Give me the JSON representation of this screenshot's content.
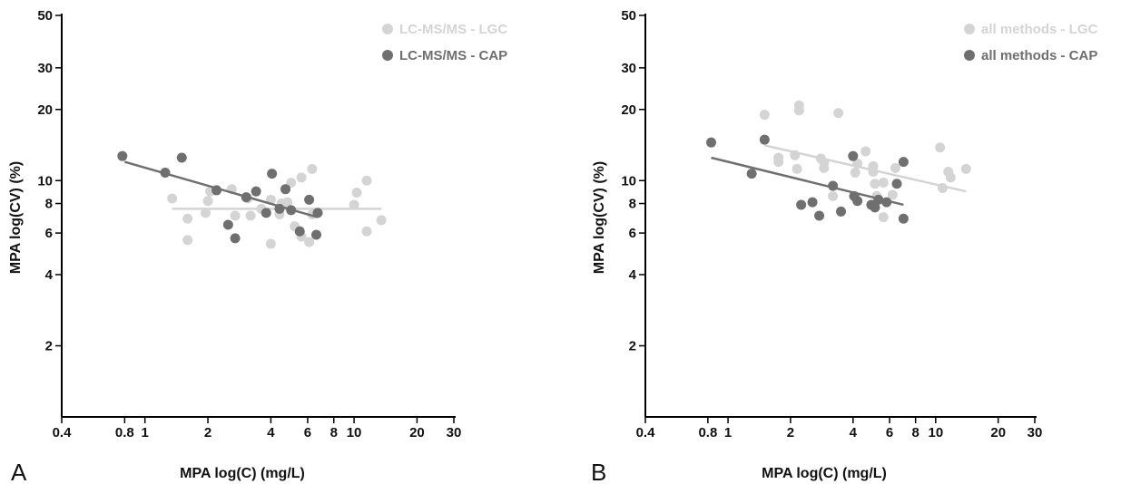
{
  "colors": {
    "lgc": "#d4d4d4",
    "cap": "#6f6f6f"
  },
  "chart_data": [
    {
      "panel_label": "A",
      "type": "scatter",
      "xlabel": "MPA log(C) (mg/L)",
      "ylabel": "MPA log(CV) (%)",
      "x_scale": "log",
      "y_scale": "log",
      "xlim": [
        0.4,
        30
      ],
      "ylim": [
        1,
        50
      ],
      "x_ticks": [
        0.4,
        0.8,
        1,
        2,
        4,
        6,
        8,
        10,
        20,
        30
      ],
      "x_tick_labels": [
        "0.4",
        "0.8",
        "1",
        "2",
        "4",
        "6",
        "8",
        "10",
        "20",
        "30"
      ],
      "y_ticks": [
        2,
        4,
        6,
        8,
        10,
        20,
        30,
        50
      ],
      "y_tick_labels": [
        "2",
        "4",
        "6",
        "8",
        "10",
        "20",
        "30",
        "50"
      ],
      "legend_position": "top-right",
      "series": [
        {
          "name": "LC-MS/MS - LGC",
          "color": "#d4d4d4",
          "points": [
            [
              1.35,
              8.4
            ],
            [
              1.6,
              6.9
            ],
            [
              1.6,
              5.6
            ],
            [
              1.95,
              7.3
            ],
            [
              2.0,
              8.2
            ],
            [
              2.05,
              9.0
            ],
            [
              2.6,
              9.2
            ],
            [
              2.7,
              7.1
            ],
            [
              3.1,
              8.4
            ],
            [
              3.2,
              7.1
            ],
            [
              3.6,
              7.6
            ],
            [
              4.0,
              8.3
            ],
            [
              4.0,
              5.4
            ],
            [
              4.4,
              7.2
            ],
            [
              4.5,
              8.0
            ],
            [
              4.8,
              8.1
            ],
            [
              5.0,
              9.8
            ],
            [
              5.2,
              6.4
            ],
            [
              5.6,
              10.3
            ],
            [
              5.6,
              5.8
            ],
            [
              6.1,
              5.5
            ],
            [
              6.3,
              11.2
            ],
            [
              6.3,
              7.2
            ],
            [
              10.0,
              7.9
            ],
            [
              10.3,
              8.9
            ],
            [
              11.5,
              10.0
            ],
            [
              11.5,
              6.1
            ],
            [
              13.5,
              6.8
            ]
          ],
          "fit_line": {
            "x": [
              1.35,
              13.5
            ],
            "y": [
              7.6,
              7.6
            ]
          }
        },
        {
          "name": "LC-MS/MS - CAP",
          "color": "#6f6f6f",
          "points": [
            [
              0.78,
              12.7
            ],
            [
              1.25,
              10.8
            ],
            [
              1.5,
              12.5
            ],
            [
              2.2,
              9.1
            ],
            [
              2.5,
              6.5
            ],
            [
              2.7,
              5.7
            ],
            [
              3.05,
              8.5
            ],
            [
              3.4,
              9.0
            ],
            [
              3.8,
              7.3
            ],
            [
              4.05,
              10.7
            ],
            [
              4.4,
              7.6
            ],
            [
              4.7,
              9.2
            ],
            [
              5.0,
              7.5
            ],
            [
              5.5,
              6.1
            ],
            [
              6.1,
              8.3
            ],
            [
              6.6,
              5.9
            ],
            [
              6.7,
              7.3
            ]
          ],
          "fit_line": {
            "x": [
              0.8,
              6.7
            ],
            "y": [
              12.0,
              7.0
            ]
          }
        }
      ]
    },
    {
      "panel_label": "B",
      "type": "scatter",
      "xlabel": "MPA log(C) (mg/L)",
      "ylabel": "MPA log(CV) (%)",
      "x_scale": "log",
      "y_scale": "log",
      "xlim": [
        0.4,
        30
      ],
      "ylim": [
        1,
        50
      ],
      "x_ticks": [
        0.4,
        0.8,
        1,
        2,
        4,
        6,
        8,
        10,
        20,
        30
      ],
      "x_tick_labels": [
        "0.4",
        "0.8",
        "1",
        "2",
        "4",
        "6",
        "8",
        "10",
        "20",
        "30"
      ],
      "y_ticks": [
        2,
        4,
        6,
        8,
        10,
        20,
        30,
        50
      ],
      "y_tick_labels": [
        "2",
        "4",
        "6",
        "8",
        "10",
        "20",
        "30",
        "50"
      ],
      "legend_position": "top-right",
      "series": [
        {
          "name": "all methods - LGC",
          "color": "#d4d4d4",
          "points": [
            [
              1.5,
              19.0
            ],
            [
              1.75,
              12.5
            ],
            [
              1.75,
              12.0
            ],
            [
              2.1,
              12.8
            ],
            [
              2.15,
              11.2
            ],
            [
              2.2,
              20.8
            ],
            [
              2.2,
              19.8
            ],
            [
              2.8,
              12.4
            ],
            [
              2.9,
              11.9
            ],
            [
              2.9,
              11.3
            ],
            [
              3.2,
              8.6
            ],
            [
              3.4,
              19.3
            ],
            [
              4.1,
              10.8
            ],
            [
              4.2,
              11.8
            ],
            [
              4.6,
              13.3
            ],
            [
              5.0,
              11.5
            ],
            [
              5.0,
              10.9
            ],
            [
              5.1,
              9.7
            ],
            [
              5.2,
              8.6
            ],
            [
              5.6,
              9.8
            ],
            [
              5.6,
              7.0
            ],
            [
              6.2,
              8.7
            ],
            [
              6.4,
              11.3
            ],
            [
              10.5,
              13.8
            ],
            [
              10.8,
              9.3
            ],
            [
              11.5,
              10.9
            ],
            [
              11.8,
              10.3
            ],
            [
              14.0,
              11.2
            ]
          ],
          "fit_line": {
            "x": [
              1.5,
              14.0
            ],
            "y": [
              14.1,
              9.0
            ]
          }
        },
        {
          "name": "all methods - CAP",
          "color": "#6f6f6f",
          "points": [
            [
              0.83,
              14.5
            ],
            [
              1.3,
              10.7
            ],
            [
              1.5,
              14.9
            ],
            [
              2.25,
              7.9
            ],
            [
              2.55,
              8.1
            ],
            [
              2.75,
              7.1
            ],
            [
              3.2,
              9.5
            ],
            [
              3.5,
              7.4
            ],
            [
              4.0,
              12.7
            ],
            [
              4.05,
              8.6
            ],
            [
              4.2,
              8.2
            ],
            [
              4.9,
              7.9
            ],
            [
              5.1,
              7.7
            ],
            [
              5.3,
              8.3
            ],
            [
              5.8,
              8.1
            ],
            [
              6.5,
              9.7
            ],
            [
              7.0,
              12.0
            ],
            [
              7.0,
              6.9
            ]
          ],
          "fit_line": {
            "x": [
              0.83,
              7.0
            ],
            "y": [
              12.5,
              7.9
            ]
          }
        }
      ]
    }
  ]
}
